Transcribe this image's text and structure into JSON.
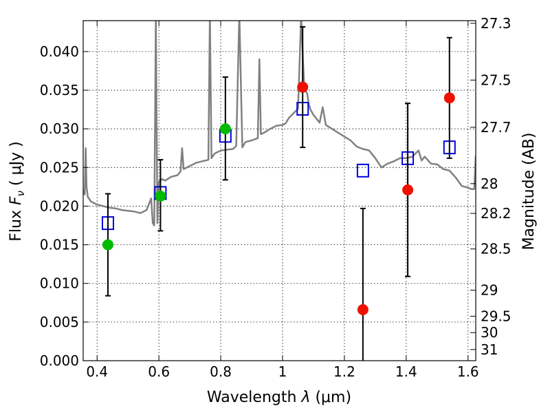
{
  "chart_data": {
    "type": "scatter",
    "xlabel": "Wavelength",
    "xlabel_symbol": "λ",
    "xlabel_unit": "(μm)",
    "ylabel_text": "Flux",
    "ylabel_symbol": "F",
    "ylabel_subscript": "ν",
    "ylabel_unit": "( μJy )",
    "y2label": "Magnitude (AB)",
    "xlim": [
      0.355,
      1.625
    ],
    "ylim": [
      0.0,
      0.044
    ],
    "grid": true,
    "x_ticks": [
      {
        "value": 0.4,
        "label": "0.4"
      },
      {
        "value": 0.6,
        "label": "0.6"
      },
      {
        "value": 0.8,
        "label": "0.8"
      },
      {
        "value": 1.0,
        "label": "1"
      },
      {
        "value": 1.2,
        "label": "1.2"
      },
      {
        "value": 1.4,
        "label": "1.4"
      },
      {
        "value": 1.6,
        "label": "1.6"
      }
    ],
    "y_ticks": [
      {
        "value": 0.0,
        "label": "0.000"
      },
      {
        "value": 0.005,
        "label": "0.005"
      },
      {
        "value": 0.01,
        "label": "0.010"
      },
      {
        "value": 0.015,
        "label": "0.015"
      },
      {
        "value": 0.02,
        "label": "0.020"
      },
      {
        "value": 0.025,
        "label": "0.025"
      },
      {
        "value": 0.03,
        "label": "0.030"
      },
      {
        "value": 0.035,
        "label": "0.035"
      },
      {
        "value": 0.04,
        "label": "0.040"
      }
    ],
    "y2_ticks": [
      {
        "value": 27.3,
        "label": "27.3"
      },
      {
        "value": 27.5,
        "label": "27.5"
      },
      {
        "value": 27.7,
        "label": "27.7"
      },
      {
        "value": 28.0,
        "label": "28"
      },
      {
        "value": 28.2,
        "label": "28.2"
      },
      {
        "value": 28.5,
        "label": "28.5"
      },
      {
        "value": 29.0,
        "label": "29"
      },
      {
        "value": 29.5,
        "label": "29.5"
      },
      {
        "value": 30.0,
        "label": "30"
      },
      {
        "value": 31.0,
        "label": "31"
      }
    ],
    "colors": {
      "model": "#808080",
      "green_points": "#00bb00",
      "red_points": "#ee1100",
      "squares": "#0000dd",
      "errorbars": "#000000"
    },
    "series": [
      {
        "kind": "line",
        "x": [
          0.355,
          0.36,
          0.363,
          0.366,
          0.37,
          0.38,
          0.4,
          0.42,
          0.44,
          0.46,
          0.48,
          0.5,
          0.52,
          0.54,
          0.56,
          0.575,
          0.58,
          0.585,
          0.59,
          0.595,
          0.6,
          0.61,
          0.62,
          0.64,
          0.66,
          0.67,
          0.675,
          0.68,
          0.7,
          0.72,
          0.74,
          0.76,
          0.765,
          0.77,
          0.775,
          0.78,
          0.79,
          0.8,
          0.82,
          0.84,
          0.85,
          0.86,
          0.87,
          0.88,
          0.9,
          0.92,
          0.925,
          0.93,
          0.94,
          0.96,
          0.98,
          1.0,
          1.01,
          1.02,
          1.03,
          1.04,
          1.05,
          1.06,
          1.07,
          1.08,
          1.085,
          1.09,
          1.1,
          1.12,
          1.13,
          1.14,
          1.16,
          1.18,
          1.2,
          1.22,
          1.24,
          1.26,
          1.28,
          1.3,
          1.32,
          1.34,
          1.36,
          1.38,
          1.4,
          1.42,
          1.44,
          1.45,
          1.46,
          1.48,
          1.5,
          1.52,
          1.54,
          1.56,
          1.58,
          1.6,
          1.61,
          1.62,
          1.625
        ],
        "y": [
          0.0222,
          0.0215,
          0.0275,
          0.0225,
          0.0212,
          0.0206,
          0.0202,
          0.02,
          0.0198,
          0.0197,
          0.0195,
          0.0194,
          0.0193,
          0.0191,
          0.0195,
          0.021,
          0.0178,
          0.0175,
          0.045,
          0.0178,
          0.0232,
          0.0235,
          0.0233,
          0.0238,
          0.024,
          0.0245,
          0.0275,
          0.0248,
          0.0252,
          0.0256,
          0.0258,
          0.026,
          0.045,
          0.0262,
          0.0265,
          0.0268,
          0.027,
          0.0272,
          0.0273,
          0.0274,
          0.0278,
          0.045,
          0.0276,
          0.0283,
          0.0285,
          0.0288,
          0.039,
          0.0293,
          0.0295,
          0.03,
          0.0304,
          0.0305,
          0.0307,
          0.0314,
          0.0318,
          0.0322,
          0.0326,
          0.0445,
          0.0353,
          0.0345,
          0.0332,
          0.0325,
          0.0318,
          0.0308,
          0.0328,
          0.0305,
          0.03,
          0.0295,
          0.029,
          0.0285,
          0.0277,
          0.0274,
          0.0272,
          0.0262,
          0.025,
          0.0255,
          0.0258,
          0.0262,
          0.0262,
          0.0264,
          0.0272,
          0.0259,
          0.0264,
          0.0255,
          0.0254,
          0.0248,
          0.0246,
          0.0237,
          0.0226,
          0.0224,
          0.0222,
          0.0222,
          0.0265
        ]
      },
      {
        "kind": "squares",
        "x": [
          0.435,
          0.605,
          0.815,
          1.065,
          1.26,
          1.405,
          1.54
        ],
        "y": [
          0.0178,
          0.0217,
          0.0291,
          0.0326,
          0.0246,
          0.0262,
          0.0276
        ]
      },
      {
        "kind": "points",
        "color_key": "green_points",
        "x": [
          0.435,
          0.605,
          0.815
        ],
        "y": [
          0.015,
          0.0213,
          0.03
        ],
        "yerr_low": [
          0.0084,
          0.0168,
          0.0234
        ],
        "yerr_high": [
          0.0216,
          0.026,
          0.0367
        ]
      },
      {
        "kind": "points",
        "color_key": "red_points",
        "x": [
          1.065,
          1.26,
          1.405,
          1.54
        ],
        "y": [
          0.0354,
          0.0066,
          0.0221,
          0.034
        ],
        "yerr_low": [
          0.0276,
          -0.005,
          0.0109,
          0.0262
        ],
        "yerr_high": [
          0.0432,
          0.0197,
          0.0333,
          0.0418
        ]
      }
    ]
  }
}
